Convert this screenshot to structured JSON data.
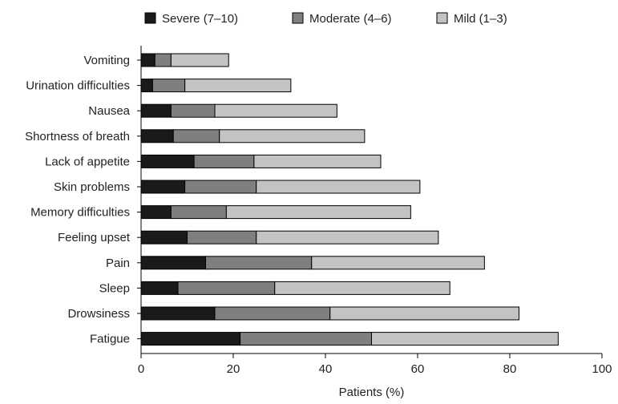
{
  "chart_data": {
    "type": "bar",
    "orientation": "horizontal",
    "stacked": true,
    "title": "",
    "xlabel": "Patients (%)",
    "ylabel": "",
    "xlim": [
      0,
      100
    ],
    "xticks": [
      0,
      20,
      40,
      60,
      80,
      100
    ],
    "grid": false,
    "legend_position": "top",
    "categories": [
      "Vomiting",
      "Urination difficulties",
      "Nausea",
      "Shortness of breath",
      "Lack of appetite",
      "Skin problems",
      "Memory difficulties",
      "Feeling upset",
      "Pain",
      "Sleep",
      "Drowsiness",
      "Fatigue"
    ],
    "series": [
      {
        "name": "Severe (7–10)",
        "color": "#1a1a1a",
        "values": [
          3.0,
          2.5,
          6.5,
          7.0,
          11.5,
          9.5,
          6.5,
          10.0,
          14.0,
          8.0,
          16.0,
          21.5
        ]
      },
      {
        "name": "Moderate (4–6)",
        "color": "#7f7f7f",
        "values": [
          3.5,
          7.0,
          9.5,
          10.0,
          13.0,
          15.5,
          12.0,
          15.0,
          23.0,
          21.0,
          25.0,
          28.5
        ]
      },
      {
        "name": "Mild (1–3)",
        "color": "#c3c3c3",
        "values": [
          12.5,
          23.0,
          26.5,
          31.5,
          27.5,
          35.5,
          40.0,
          39.5,
          37.5,
          38.0,
          41.0,
          40.5
        ]
      }
    ]
  }
}
